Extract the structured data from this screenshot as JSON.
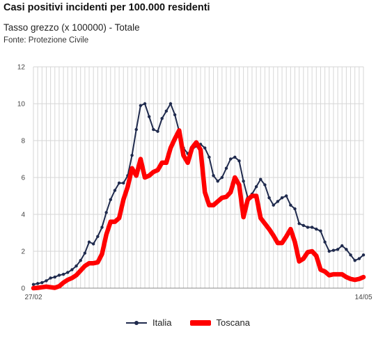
{
  "header": {
    "title": "Casi positivi incidenti per 100.000 residenti",
    "subtitle": "Tasso grezzo (x 100000) - Totale",
    "source": "Fonte: Protezione Civile"
  },
  "colors": {
    "italia": "#1f2a4d",
    "toscana": "#ff0000",
    "grid": "#d6d6d6"
  },
  "chart_data": {
    "type": "line",
    "title": "Casi positivi incidenti per 100.000 residenti",
    "subtitle": "Tasso grezzo (x 100000) - Totale",
    "xlabel": "",
    "ylabel": "",
    "ylim": [
      0,
      12
    ],
    "yticks": [
      "0",
      "2",
      "4",
      "6",
      "8",
      "10",
      "12"
    ],
    "xtick_labels": {
      "0": "27/02",
      "77": "14/05"
    },
    "legend_position": "bottom",
    "grid": true,
    "series": [
      {
        "name": "Italia",
        "values": [
          0.2,
          0.25,
          0.3,
          0.4,
          0.55,
          0.6,
          0.7,
          0.75,
          0.85,
          1.0,
          1.2,
          1.5,
          1.9,
          2.5,
          2.4,
          2.8,
          3.3,
          4.1,
          4.8,
          5.3,
          5.7,
          5.7,
          6.1,
          7.2,
          8.6,
          9.9,
          10.0,
          9.3,
          8.6,
          8.5,
          9.2,
          9.6,
          10.0,
          9.4,
          8.5,
          7.6,
          7.3,
          7.5,
          7.7,
          7.8,
          7.6,
          7.1,
          6.1,
          5.8,
          6.0,
          6.5,
          7.0,
          7.1,
          6.9,
          5.8,
          4.9,
          5.1,
          5.5,
          5.9,
          5.6,
          4.9,
          4.5,
          4.7,
          4.9,
          5.0,
          4.5,
          4.3,
          3.5,
          3.4,
          3.3,
          3.3,
          3.2,
          3.1,
          2.5,
          2.0,
          2.05,
          2.1,
          2.3,
          2.1,
          1.8,
          1.5,
          1.6,
          1.8
        ]
      },
      {
        "name": "Toscana",
        "values": [
          0.0,
          0.02,
          0.05,
          0.08,
          0.05,
          0.02,
          0.1,
          0.3,
          0.45,
          0.55,
          0.7,
          0.95,
          1.2,
          1.35,
          1.35,
          1.4,
          1.85,
          2.9,
          3.6,
          3.6,
          3.8,
          4.8,
          5.5,
          6.5,
          6.1,
          7.0,
          6.0,
          6.1,
          6.3,
          6.4,
          6.8,
          6.8,
          7.6,
          8.1,
          8.55,
          7.2,
          6.8,
          7.6,
          7.9,
          7.5,
          5.2,
          4.5,
          4.5,
          4.7,
          4.9,
          4.95,
          5.2,
          6.0,
          5.6,
          3.85,
          4.8,
          5.0,
          5.0,
          3.8,
          3.5,
          3.2,
          2.85,
          2.45,
          2.45,
          2.8,
          3.2,
          2.5,
          1.45,
          1.6,
          1.95,
          2.0,
          1.75,
          1.0,
          0.9,
          0.7,
          0.75,
          0.75,
          0.75,
          0.6,
          0.5,
          0.45,
          0.5,
          0.6
        ]
      }
    ]
  }
}
